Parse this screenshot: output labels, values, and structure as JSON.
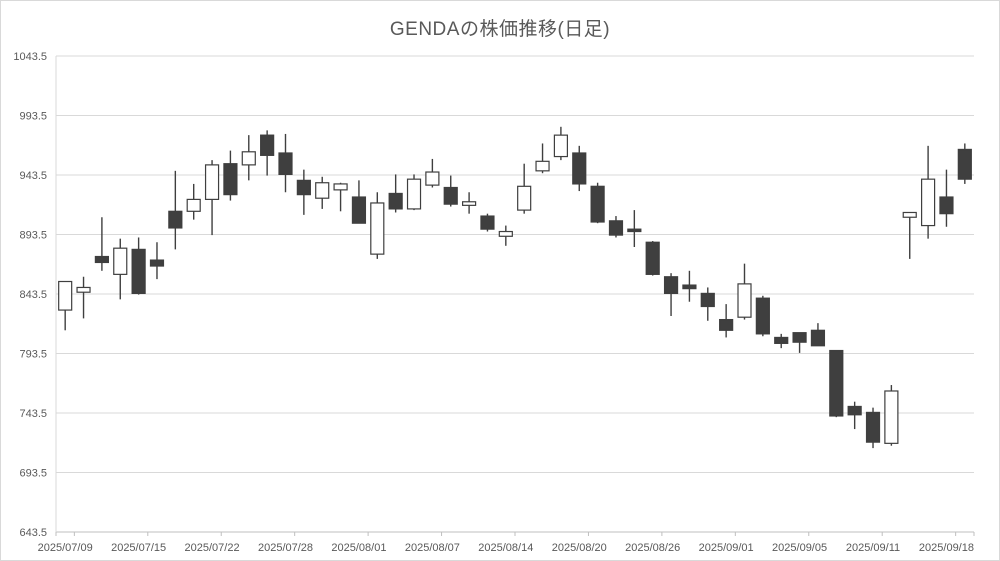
{
  "title": "GENDAの株価推移(日足)",
  "chart_data": {
    "type": "candlestick",
    "title": "GENDAの株価推移(日足)",
    "ylabel": "",
    "xlabel": "",
    "y_axis": {
      "min": 643.5,
      "max": 1043.5,
      "step": 50,
      "tick_labels": [
        "1043.5",
        "993.5",
        "943.5",
        "893.5",
        "843.5",
        "793.5",
        "743.5",
        "693.5",
        "643.5"
      ]
    },
    "x_axis": {
      "tick_labels": [
        "2025/07/09",
        "2025/07/15",
        "2025/07/22",
        "2025/07/28",
        "2025/08/01",
        "2025/08/07",
        "2025/08/14",
        "2025/08/20",
        "2025/08/26",
        "2025/09/01",
        "2025/09/05",
        "2025/09/11",
        "2025/09/18"
      ],
      "label_every": 4
    },
    "grid": true,
    "legend": "none",
    "ohlc_note": "each candle = [open, high, low, close], hollow = close>=open, filled = close<open",
    "ohlc": [
      [
        830,
        854,
        813,
        854
      ],
      [
        845,
        858,
        823,
        849
      ],
      [
        875,
        908,
        863,
        870
      ],
      [
        860,
        890,
        839,
        882
      ],
      [
        881,
        891,
        843,
        844
      ],
      [
        872,
        887,
        856,
        867
      ],
      [
        913,
        947,
        881,
        899
      ],
      [
        913,
        936,
        906,
        923
      ],
      [
        923,
        956,
        893,
        952
      ],
      [
        953,
        964,
        922,
        927
      ],
      [
        952,
        977,
        939,
        963
      ],
      [
        977,
        981,
        943,
        960
      ],
      [
        962,
        978,
        929,
        944
      ],
      [
        939,
        948,
        910,
        927
      ],
      [
        924,
        942,
        915,
        937
      ],
      [
        931,
        937,
        913,
        936
      ],
      [
        925,
        939,
        903,
        903
      ],
      [
        877,
        929,
        873,
        920
      ],
      [
        928,
        944,
        912,
        915
      ],
      [
        915,
        944,
        914,
        940
      ],
      [
        935,
        957,
        933,
        946
      ],
      [
        933,
        943,
        917,
        919
      ],
      [
        918,
        929,
        911,
        921
      ],
      [
        909,
        911,
        896,
        898
      ],
      [
        892,
        901,
        884,
        896
      ],
      [
        914,
        953,
        911,
        934
      ],
      [
        947,
        970,
        945,
        955
      ],
      [
        959,
        984,
        956,
        977
      ],
      [
        962,
        968,
        930,
        936
      ],
      [
        934,
        937,
        903,
        904
      ],
      [
        905,
        909,
        891,
        893
      ],
      [
        898,
        914,
        883,
        896
      ],
      [
        887,
        888,
        859,
        860
      ],
      [
        858,
        861,
        825,
        844
      ],
      [
        851,
        863,
        837,
        848
      ],
      [
        844,
        849,
        821,
        833
      ],
      [
        822,
        835,
        807,
        813
      ],
      [
        824,
        869,
        822,
        852
      ],
      [
        840,
        842,
        808,
        810
      ],
      [
        807,
        810,
        798,
        802
      ],
      [
        811,
        811,
        794,
        803
      ],
      [
        813,
        819,
        800,
        800
      ],
      [
        796,
        796,
        740,
        741
      ],
      [
        749,
        753,
        730,
        742
      ],
      [
        744,
        748,
        714,
        719
      ],
      [
        718,
        767,
        716,
        762
      ],
      [
        908,
        912,
        873,
        912
      ],
      [
        901,
        968,
        890,
        940
      ],
      [
        925,
        948,
        900,
        911
      ],
      [
        965,
        970,
        936,
        940
      ]
    ],
    "colors": {
      "up_fill": "#ffffff",
      "down_fill": "#3f3f3f",
      "outline": "#3f3f3f",
      "wick": "#3f3f3f",
      "grid": "#d9d9d9",
      "axis_line": "#bfbfbf",
      "text": "#595959",
      "background": "#ffffff"
    }
  }
}
